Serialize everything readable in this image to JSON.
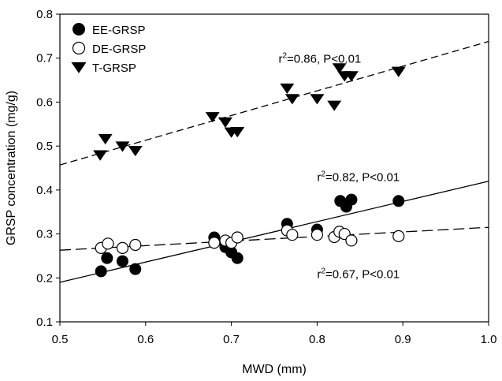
{
  "chart_data": {
    "type": "scatter",
    "xlabel": "MWD (mm)",
    "ylabel": "GRSP concentration (mg/g)",
    "xlim": [
      0.5,
      1.0
    ],
    "ylim": [
      0.1,
      0.8
    ],
    "xticks": [
      0.5,
      0.6,
      0.7,
      0.8,
      0.9,
      1.0
    ],
    "xtick_labels": [
      "0.5",
      "0.6",
      "0.7",
      "0.8",
      "0.9",
      "1.0"
    ],
    "yticks": [
      0.1,
      0.2,
      0.3,
      0.4,
      0.5,
      0.6,
      0.7,
      0.8
    ],
    "ytick_labels": [
      "0.1",
      "0.2",
      "0.3",
      "0.4",
      "0.5",
      "0.6",
      "0.7",
      "0.8"
    ],
    "grid": false,
    "legend_position": "top-left",
    "series": [
      {
        "name": "EE-GRSP",
        "marker": "circle-filled",
        "fit_line": "solid",
        "fit": {
          "x": [
            0.5,
            1.0
          ],
          "y": [
            0.19,
            0.42
          ]
        },
        "points": [
          {
            "x": 0.548,
            "y": 0.215
          },
          {
            "x": 0.555,
            "y": 0.245
          },
          {
            "x": 0.573,
            "y": 0.238
          },
          {
            "x": 0.588,
            "y": 0.22
          },
          {
            "x": 0.68,
            "y": 0.292
          },
          {
            "x": 0.693,
            "y": 0.27
          },
          {
            "x": 0.7,
            "y": 0.258
          },
          {
            "x": 0.707,
            "y": 0.245
          },
          {
            "x": 0.765,
            "y": 0.323
          },
          {
            "x": 0.8,
            "y": 0.31
          },
          {
            "x": 0.827,
            "y": 0.375
          },
          {
            "x": 0.834,
            "y": 0.362
          },
          {
            "x": 0.84,
            "y": 0.378
          },
          {
            "x": 0.895,
            "y": 0.375
          }
        ]
      },
      {
        "name": "DE-GRSP",
        "marker": "circle-open",
        "fit_line": "long-dash",
        "fit": {
          "x": [
            0.5,
            1.0
          ],
          "y": [
            0.263,
            0.315
          ]
        },
        "points": [
          {
            "x": 0.548,
            "y": 0.268
          },
          {
            "x": 0.556,
            "y": 0.278
          },
          {
            "x": 0.573,
            "y": 0.268
          },
          {
            "x": 0.588,
            "y": 0.275
          },
          {
            "x": 0.68,
            "y": 0.28
          },
          {
            "x": 0.693,
            "y": 0.285
          },
          {
            "x": 0.7,
            "y": 0.28
          },
          {
            "x": 0.707,
            "y": 0.292
          },
          {
            "x": 0.765,
            "y": 0.308
          },
          {
            "x": 0.771,
            "y": 0.298
          },
          {
            "x": 0.8,
            "y": 0.298
          },
          {
            "x": 0.82,
            "y": 0.293
          },
          {
            "x": 0.826,
            "y": 0.305
          },
          {
            "x": 0.832,
            "y": 0.3
          },
          {
            "x": 0.84,
            "y": 0.285
          },
          {
            "x": 0.895,
            "y": 0.295
          }
        ]
      },
      {
        "name": "T-GRSP",
        "marker": "triangle-down-filled",
        "fit_line": "dash",
        "fit": {
          "x": [
            0.5,
            1.0
          ],
          "y": [
            0.457,
            0.738
          ]
        },
        "points": [
          {
            "x": 0.547,
            "y": 0.48
          },
          {
            "x": 0.553,
            "y": 0.517
          },
          {
            "x": 0.573,
            "y": 0.5
          },
          {
            "x": 0.588,
            "y": 0.49
          },
          {
            "x": 0.678,
            "y": 0.567
          },
          {
            "x": 0.693,
            "y": 0.555
          },
          {
            "x": 0.7,
            "y": 0.532
          },
          {
            "x": 0.707,
            "y": 0.533
          },
          {
            "x": 0.765,
            "y": 0.632
          },
          {
            "x": 0.771,
            "y": 0.608
          },
          {
            "x": 0.8,
            "y": 0.608
          },
          {
            "x": 0.82,
            "y": 0.593
          },
          {
            "x": 0.826,
            "y": 0.678
          },
          {
            "x": 0.832,
            "y": 0.66
          },
          {
            "x": 0.84,
            "y": 0.66
          },
          {
            "x": 0.895,
            "y": 0.67
          }
        ]
      }
    ],
    "annotations": [
      {
        "series": "T-GRSP",
        "pre": "r",
        "sup": "2",
        "post": "=0.86, P<0.01",
        "x": 0.755,
        "y": 0.69
      },
      {
        "series": "EE-GRSP",
        "pre": "r",
        "sup": "2",
        "post": "=0.82, P<0.01",
        "x": 0.8,
        "y": 0.42
      },
      {
        "series": "DE-GRSP",
        "pre": "r",
        "sup": "2",
        "post": "=0.67, P<0.01",
        "x": 0.8,
        "y": 0.2
      }
    ],
    "legend": [
      {
        "label": "EE-GRSP",
        "marker": "circle-filled"
      },
      {
        "label": "DE-GRSP",
        "marker": "circle-open"
      },
      {
        "label": "T-GRSP",
        "marker": "triangle-down-filled"
      }
    ]
  }
}
